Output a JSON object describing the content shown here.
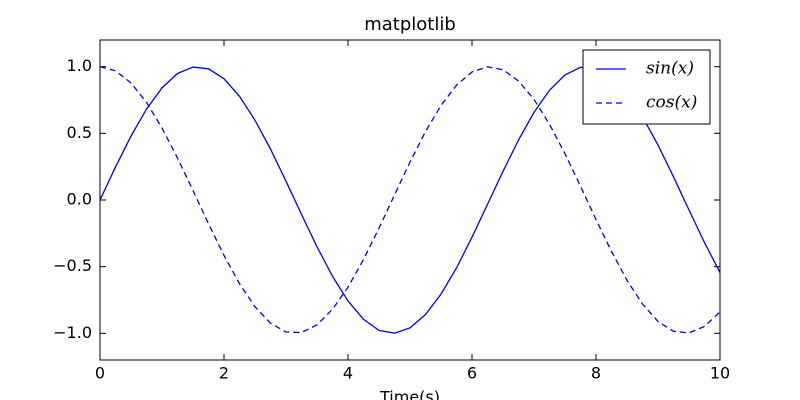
{
  "chart_data": {
    "type": "line",
    "title": "matplotlib",
    "x_label": "Time(s)",
    "x": [
      0,
      0.25,
      0.5,
      0.75,
      1,
      1.25,
      1.5,
      1.75,
      2,
      2.25,
      2.5,
      2.75,
      3,
      3.25,
      3.5,
      3.75,
      4,
      4.25,
      4.5,
      4.75,
      5,
      5.25,
      5.5,
      5.75,
      6,
      6.25,
      6.5,
      6.75,
      7,
      7.25,
      7.5,
      7.75,
      8,
      8.25,
      8.5,
      8.75,
      9,
      9.25,
      9.5,
      9.75,
      10
    ],
    "series": [
      {
        "name": "sin(x)",
        "color": "#0000ff",
        "linestyle": "solid",
        "values": [
          0,
          0.247,
          0.479,
          0.682,
          0.841,
          0.949,
          0.997,
          0.984,
          0.909,
          0.778,
          0.598,
          0.382,
          0.141,
          -0.108,
          -0.351,
          -0.572,
          -0.757,
          -0.895,
          -0.978,
          -0.999,
          -0.959,
          -0.859,
          -0.706,
          -0.51,
          -0.279,
          -0.033,
          0.215,
          0.45,
          0.657,
          0.823,
          0.938,
          0.995,
          0.989,
          0.923,
          0.798,
          0.624,
          0.412,
          0.174,
          -0.075,
          -0.319,
          -0.544
        ]
      },
      {
        "name": "cos(x)",
        "color": "#0000ff",
        "linestyle": "dashed",
        "values": [
          1,
          0.969,
          0.878,
          0.732,
          0.54,
          0.315,
          0.071,
          -0.178,
          -0.416,
          -0.628,
          -0.801,
          -0.924,
          -0.99,
          -0.994,
          -0.936,
          -0.82,
          -0.654,
          -0.446,
          -0.211,
          0.038,
          0.284,
          0.513,
          0.709,
          0.861,
          0.96,
          0.999,
          0.977,
          0.893,
          0.754,
          0.568,
          0.347,
          0.103,
          -0.146,
          -0.386,
          -0.602,
          -0.78,
          -0.911,
          -0.985,
          -0.997,
          -0.948,
          -0.839
        ]
      }
    ],
    "xlim": [
      0,
      10
    ],
    "xticks": [
      0,
      2,
      4,
      6,
      8,
      10
    ],
    "ylim": [
      -1.2,
      1.2
    ],
    "yticks": [
      {
        "value": -1,
        "label": "−1.0"
      },
      {
        "value": -0.5,
        "label": "−0.5"
      },
      {
        "value": 0,
        "label": "0.0"
      },
      {
        "value": 0.5,
        "label": "0.5"
      },
      {
        "value": 1,
        "label": "1.0"
      }
    ],
    "legend": "upper right"
  }
}
